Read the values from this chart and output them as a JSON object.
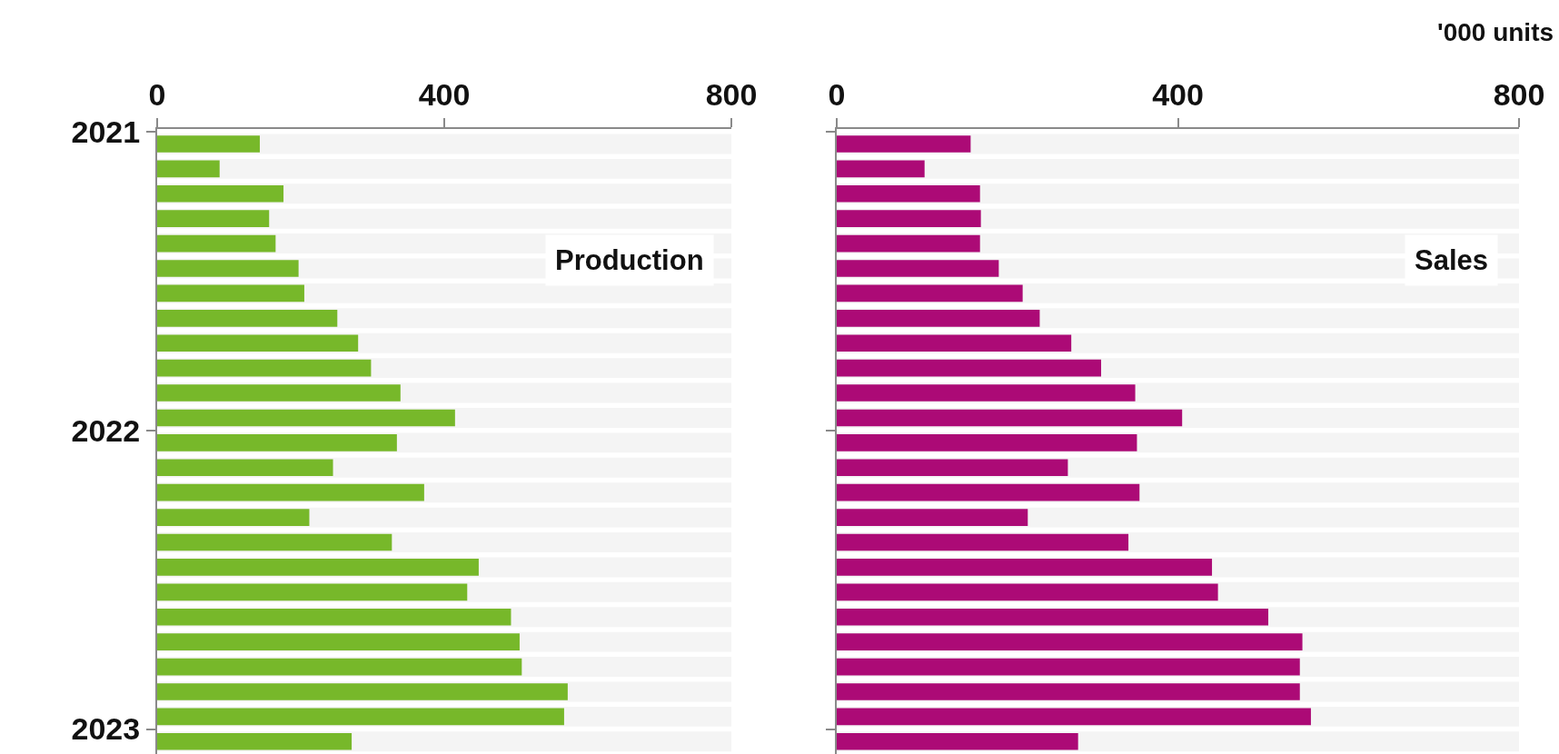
{
  "chart_data": [
    {
      "type": "bar",
      "orientation": "horizontal",
      "categories": [
        "2021",
        null,
        null,
        null,
        null,
        null,
        null,
        null,
        null,
        null,
        null,
        null,
        "2022",
        null,
        null,
        null,
        null,
        null,
        null,
        null,
        null,
        null,
        null,
        null,
        "2023"
      ],
      "series": [
        {
          "name": "Production",
          "color": "#77b82a",
          "values": [
            143,
            87,
            176,
            156,
            165,
            197,
            205,
            251,
            280,
            298,
            339,
            415,
            334,
            245,
            372,
            212,
            327,
            448,
            432,
            493,
            505,
            508,
            572,
            567,
            271
          ]
        }
      ],
      "xlim": [
        0,
        800
      ],
      "xticks": [
        0,
        400,
        800
      ],
      "grid": false,
      "legend": false
    },
    {
      "type": "bar",
      "orientation": "horizontal",
      "categories": [
        "2021",
        null,
        null,
        null,
        null,
        null,
        null,
        null,
        null,
        null,
        null,
        null,
        "2022",
        null,
        null,
        null,
        null,
        null,
        null,
        null,
        null,
        null,
        null,
        null,
        "2023"
      ],
      "series": [
        {
          "name": "Sales",
          "color": "#ac0a76",
          "values": [
            157,
            103,
            168,
            169,
            168,
            190,
            218,
            238,
            275,
            310,
            350,
            405,
            352,
            271,
            355,
            224,
            342,
            440,
            447,
            506,
            546,
            543,
            543,
            556,
            283
          ]
        }
      ],
      "xlim": [
        0,
        800
      ],
      "xticks": [
        0,
        400,
        800
      ],
      "grid": false,
      "legend": false,
      "tick_labels": "x",
      "annotations": [
        "'000 units"
      ]
    }
  ]
}
